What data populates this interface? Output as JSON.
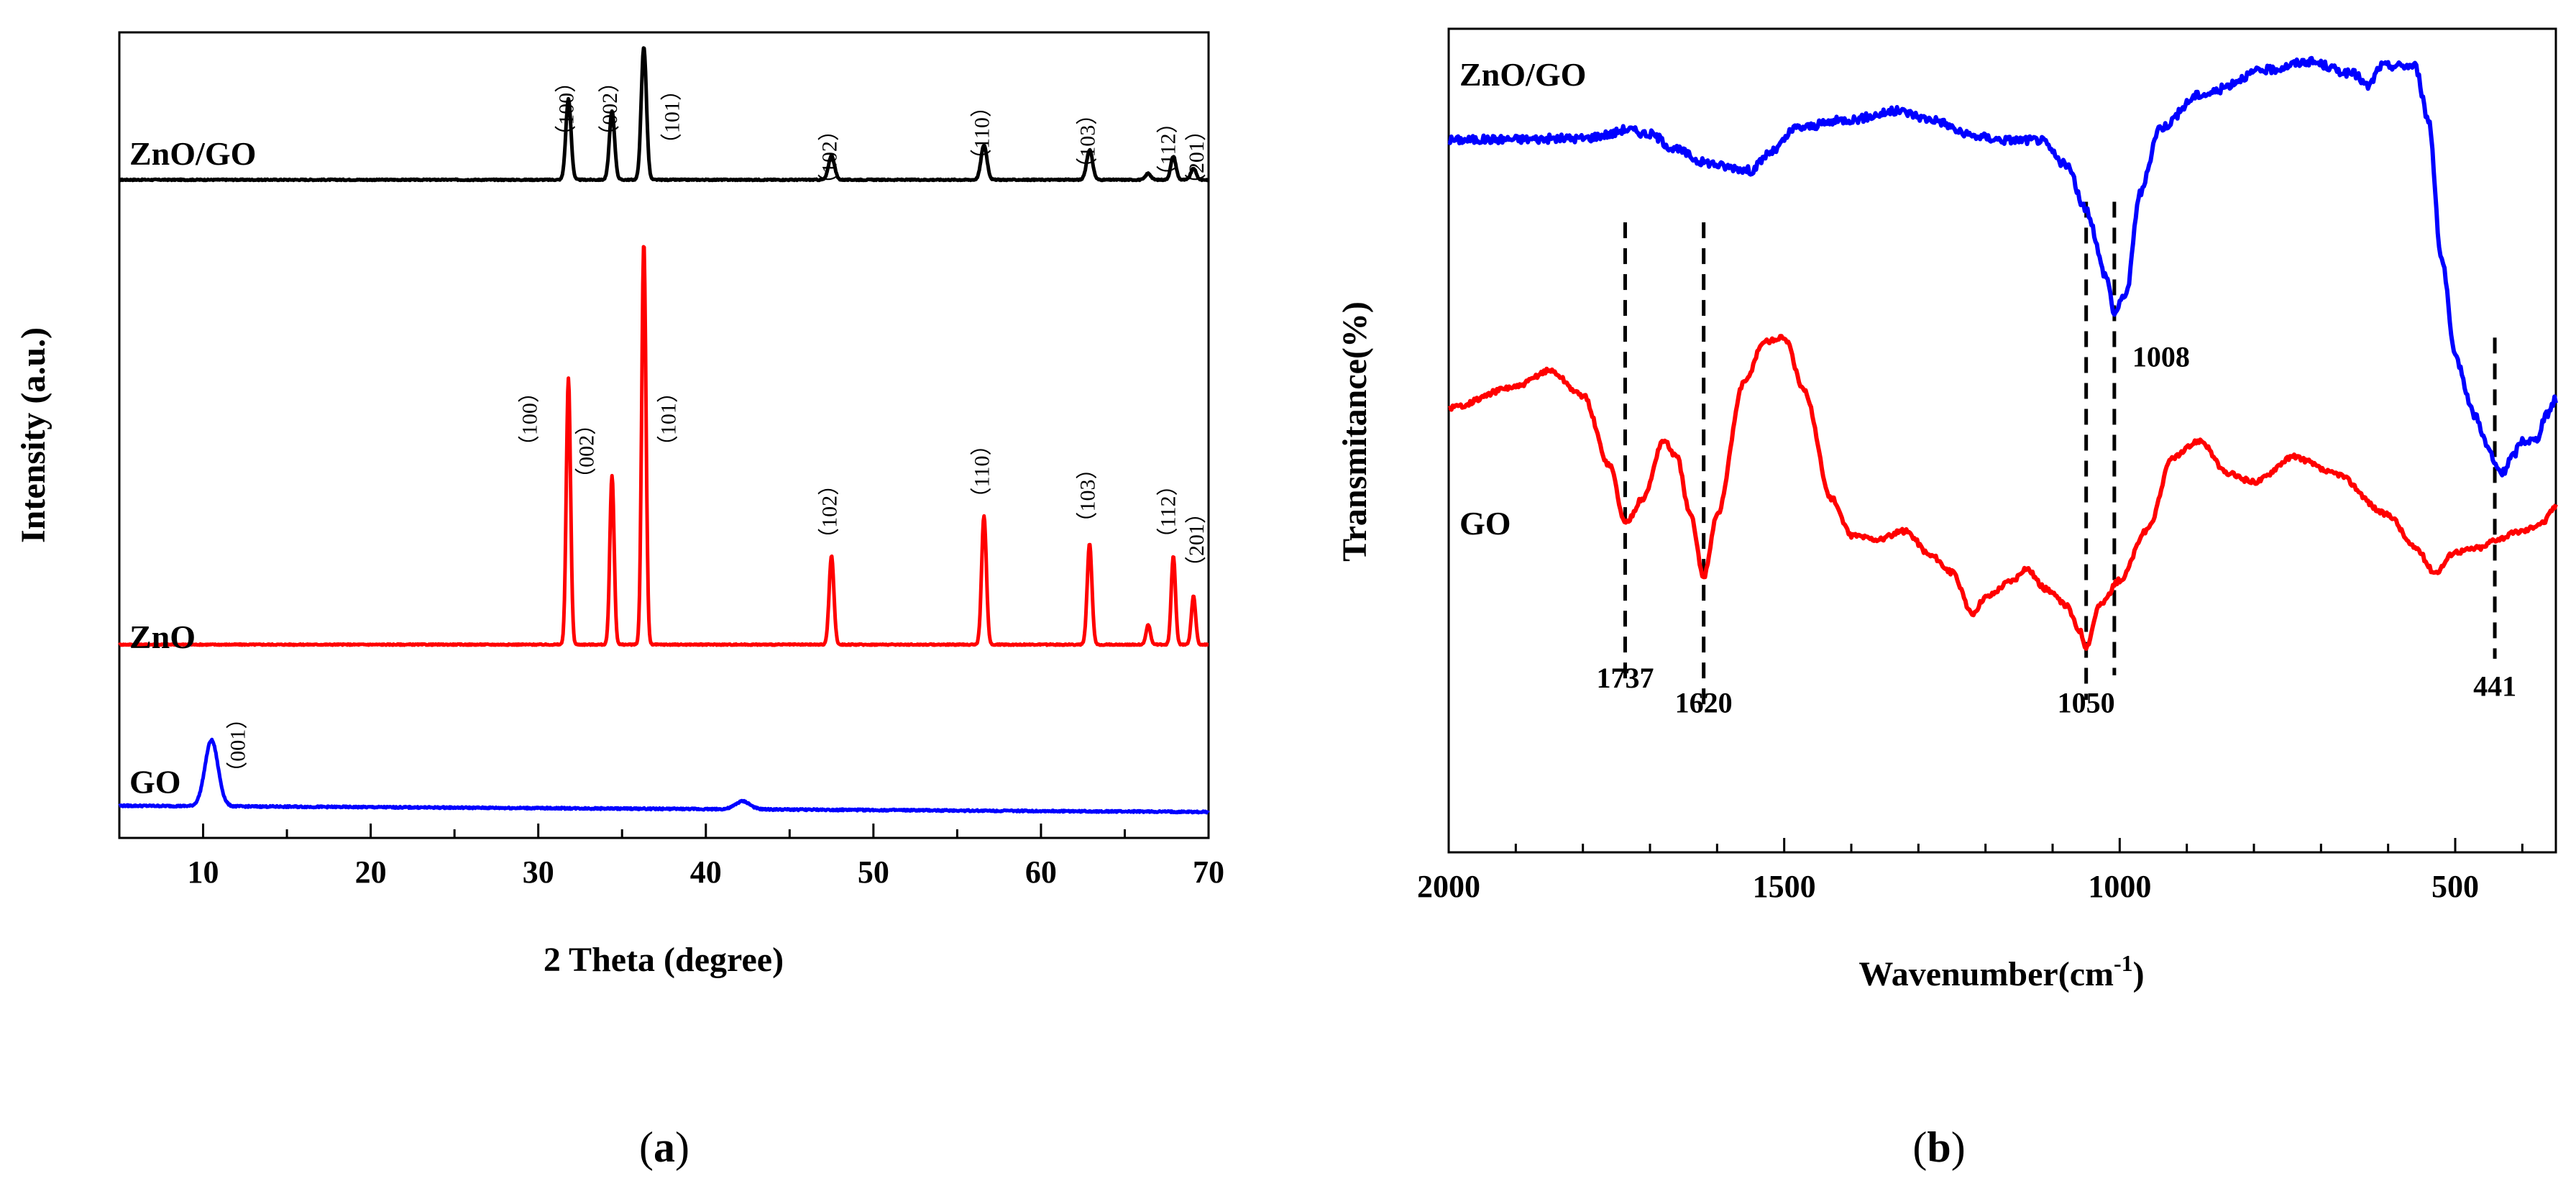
{
  "figure": {
    "caption_a": "a",
    "caption_b": "b"
  },
  "chart_data": [
    {
      "id": "a",
      "type": "line",
      "title": "",
      "xlabel": "2 Theta (degree)",
      "ylabel": "Intensity (a.u.)",
      "xlim": [
        5,
        70
      ],
      "xticks": [
        10,
        20,
        30,
        40,
        50,
        60,
        70
      ],
      "xtick_labels": [
        "10",
        "20",
        "30",
        "40",
        "50",
        "60",
        "70"
      ],
      "yticks_shown": false,
      "series": [
        {
          "name": "ZnO/GO",
          "color": "#000000",
          "baseline": 0.817,
          "noise": 0.0015,
          "peaks": [
            {
              "x": 31.8,
              "h": 0.1,
              "w": 0.22
            },
            {
              "x": 34.4,
              "h": 0.085,
              "w": 0.22
            },
            {
              "x": 36.3,
              "h": 0.165,
              "w": 0.22
            },
            {
              "x": 47.5,
              "h": 0.03,
              "w": 0.25
            },
            {
              "x": 56.6,
              "h": 0.043,
              "w": 0.25
            },
            {
              "x": 62.9,
              "h": 0.037,
              "w": 0.25
            },
            {
              "x": 66.4,
              "h": 0.008,
              "w": 0.22
            },
            {
              "x": 67.9,
              "h": 0.029,
              "w": 0.22
            },
            {
              "x": 69.1,
              "h": 0.014,
              "w": 0.22
            }
          ],
          "peak_labels": [
            {
              "x": 31.8,
              "y": 0.905,
              "text": "（100）"
            },
            {
              "x": 34.4,
              "y": 0.905,
              "text": "（002）"
            },
            {
              "x": 38.1,
              "y": 0.895,
              "text": "（101）"
            },
            {
              "x": 47.5,
              "y": 0.845,
              "text": "（102）"
            },
            {
              "x": 56.6,
              "y": 0.875,
              "text": "（110）"
            },
            {
              "x": 62.9,
              "y": 0.865,
              "text": "（103）"
            },
            {
              "x": 67.7,
              "y": 0.855,
              "text": "（112）"
            },
            {
              "x": 69.4,
              "y": 0.845,
              "text": "（201）"
            }
          ]
        },
        {
          "name": "ZnO",
          "color": "#ff0000",
          "baseline": 0.24,
          "noise": 0.0015,
          "peaks": [
            {
              "x": 31.8,
              "h": 0.33,
              "w": 0.18
            },
            {
              "x": 34.4,
              "h": 0.21,
              "w": 0.18
            },
            {
              "x": 36.3,
              "h": 0.5,
              "w": 0.18
            },
            {
              "x": 47.5,
              "h": 0.11,
              "w": 0.2
            },
            {
              "x": 56.6,
              "h": 0.16,
              "w": 0.2
            },
            {
              "x": 62.9,
              "h": 0.125,
              "w": 0.2
            },
            {
              "x": 66.4,
              "h": 0.025,
              "w": 0.18
            },
            {
              "x": 67.9,
              "h": 0.11,
              "w": 0.18
            },
            {
              "x": 69.1,
              "h": 0.06,
              "w": 0.18
            }
          ],
          "peak_labels": [
            {
              "x": 29.6,
              "y": 0.52,
              "text": "（100）"
            },
            {
              "x": 33.0,
              "y": 0.48,
              "text": "（002）"
            },
            {
              "x": 37.9,
              "y": 0.52,
              "text": "（101）"
            },
            {
              "x": 47.5,
              "y": 0.405,
              "text": "（102）"
            },
            {
              "x": 56.6,
              "y": 0.455,
              "text": "（110）"
            },
            {
              "x": 62.9,
              "y": 0.425,
              "text": "（103）"
            },
            {
              "x": 67.7,
              "y": 0.405,
              "text": "（112）"
            },
            {
              "x": 69.4,
              "y": 0.37,
              "text": "（201）"
            }
          ]
        },
        {
          "name": "GO",
          "color": "#0000ff",
          "baseline": 0.04,
          "noise": 0.002,
          "slope": -0.00012,
          "peaks": [
            {
              "x": 10.5,
              "h": 0.082,
              "w": 0.55
            },
            {
              "x": 42.2,
              "h": 0.01,
              "w": 0.6
            }
          ],
          "peak_labels": [
            {
              "x": 12.2,
              "y": 0.115,
              "text": "（001）"
            }
          ]
        }
      ]
    },
    {
      "id": "b",
      "type": "line",
      "title": "",
      "xlabel": "Wavenumber(cm-1)",
      "xlabel_main": "Wavenumber(cm",
      "xlabel_sup": "-1",
      "xlabel_close": ")",
      "ylabel": "Transmitance(%)",
      "xlim": [
        2000,
        350
      ],
      "xticks": [
        2000,
        1500,
        1000,
        500
      ],
      "xtick_labels": [
        "2000",
        "1500",
        "1000",
        "500"
      ],
      "yticks_shown": false,
      "series": [
        {
          "name": "ZnO/GO",
          "color": "#0000ff",
          "noise": 0.0025,
          "points": [
            [
              2000,
              0.865
            ],
            [
              1900,
              0.866
            ],
            [
              1800,
              0.867
            ],
            [
              1760,
              0.872
            ],
            [
              1737,
              0.878
            ],
            [
              1700,
              0.872
            ],
            [
              1660,
              0.853
            ],
            [
              1620,
              0.838
            ],
            [
              1580,
              0.832
            ],
            [
              1550,
              0.828
            ],
            [
              1520,
              0.85
            ],
            [
              1480,
              0.88
            ],
            [
              1400,
              0.89
            ],
            [
              1330,
              0.9
            ],
            [
              1280,
              0.89
            ],
            [
              1220,
              0.87
            ],
            [
              1170,
              0.865
            ],
            [
              1120,
              0.865
            ],
            [
              1080,
              0.835
            ],
            [
              1050,
              0.78
            ],
            [
              1020,
              0.7
            ],
            [
              1008,
              0.655
            ],
            [
              990,
              0.68
            ],
            [
              970,
              0.8
            ],
            [
              940,
              0.88
            ],
            [
              880,
              0.92
            ],
            [
              780,
              0.95
            ],
            [
              720,
              0.96
            ],
            [
              650,
              0.945
            ],
            [
              630,
              0.93
            ],
            [
              610,
              0.955
            ],
            [
              560,
              0.955
            ],
            [
              540,
              0.89
            ],
            [
              520,
              0.72
            ],
            [
              500,
              0.6
            ],
            [
              470,
              0.53
            ],
            [
              450,
              0.49
            ],
            [
              441,
              0.47
            ],
            [
              430,
              0.46
            ],
            [
              415,
              0.48
            ],
            [
              400,
              0.5
            ],
            [
              380,
              0.5
            ],
            [
              365,
              0.53
            ],
            [
              350,
              0.55
            ]
          ]
        },
        {
          "name": "GO",
          "color": "#ff0000",
          "noise": 0.0015,
          "points": [
            [
              2000,
              0.54
            ],
            [
              1900,
              0.565
            ],
            [
              1850,
              0.585
            ],
            [
              1800,
              0.555
            ],
            [
              1760,
              0.47
            ],
            [
              1737,
              0.4
            ],
            [
              1710,
              0.43
            ],
            [
              1680,
              0.5
            ],
            [
              1660,
              0.48
            ],
            [
              1640,
              0.41
            ],
            [
              1620,
              0.335
            ],
            [
              1600,
              0.41
            ],
            [
              1560,
              0.57
            ],
            [
              1530,
              0.62
            ],
            [
              1500,
              0.625
            ],
            [
              1470,
              0.56
            ],
            [
              1430,
              0.43
            ],
            [
              1400,
              0.385
            ],
            [
              1360,
              0.38
            ],
            [
              1320,
              0.39
            ],
            [
              1280,
              0.36
            ],
            [
              1250,
              0.34
            ],
            [
              1220,
              0.29
            ],
            [
              1200,
              0.31
            ],
            [
              1160,
              0.33
            ],
            [
              1140,
              0.345
            ],
            [
              1110,
              0.32
            ],
            [
              1080,
              0.3
            ],
            [
              1060,
              0.27
            ],
            [
              1050,
              0.25
            ],
            [
              1030,
              0.3
            ],
            [
              1000,
              0.33
            ],
            [
              960,
              0.39
            ],
            [
              920,
              0.48
            ],
            [
              880,
              0.5
            ],
            [
              840,
              0.46
            ],
            [
              800,
              0.45
            ],
            [
              740,
              0.48
            ],
            [
              680,
              0.46
            ],
            [
              600,
              0.41
            ],
            [
              560,
              0.37
            ],
            [
              530,
              0.34
            ],
            [
              500,
              0.365
            ],
            [
              460,
              0.37
            ],
            [
              441,
              0.38
            ],
            [
              400,
              0.39
            ],
            [
              370,
              0.4
            ],
            [
              350,
              0.42
            ]
          ]
        }
      ],
      "annotations": [
        {
          "x": 1737,
          "text": "1737",
          "label_y": 0.2
        },
        {
          "x": 1620,
          "text": "1620",
          "label_y": 0.17
        },
        {
          "x": 1050,
          "text": "1050",
          "label_y": 0.17
        },
        {
          "x": 1008,
          "text": "1008",
          "label_y": 0.59
        },
        {
          "x": 441,
          "text": "441",
          "label_y": 0.19
        }
      ]
    }
  ]
}
